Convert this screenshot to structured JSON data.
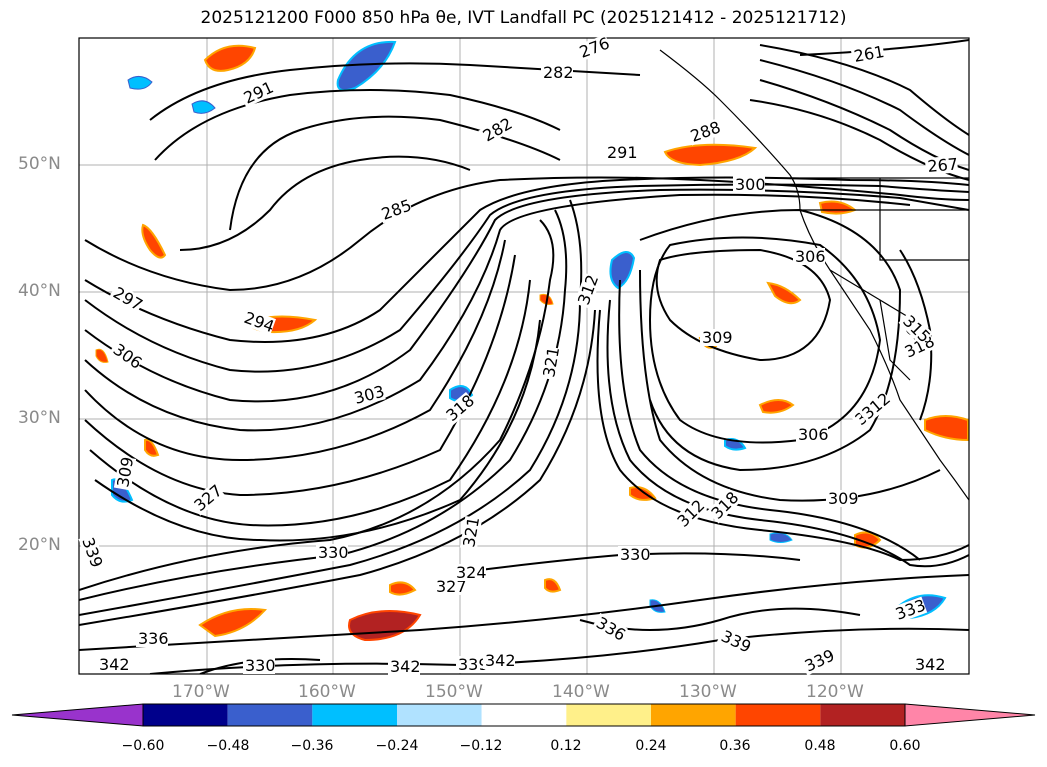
{
  "title": "2025121200 F000 850 hPa θe, IVT Landfall PC (2025121412 - 2025121712)",
  "lat_ticks": [
    "50°N",
    "40°N",
    "30°N",
    "20°N"
  ],
  "lon_ticks": [
    "170°W",
    "160°W",
    "150°W",
    "140°W",
    "130°W",
    "120°W"
  ],
  "colorbar": {
    "ticks": [
      "−0.60",
      "−0.48",
      "−0.36",
      "−0.24",
      "−0.12",
      "0.12",
      "0.24",
      "0.36",
      "0.48",
      "0.60"
    ],
    "under_color": "#9933cc",
    "colors": [
      "#00008b",
      "#3a5fcd",
      "#00bfff",
      "#b0e2ff",
      "#ffffff",
      "#fff08a",
      "#ffa500",
      "#ff4500",
      "#b22222",
      "#ff85a8"
    ],
    "over_color": "#ff85a8"
  },
  "contour_labels": [
    "261",
    "267",
    "276",
    "282",
    "282",
    "288",
    "291",
    "291",
    "285",
    "297",
    "294",
    "306",
    "303",
    "300",
    "306",
    "309",
    "312",
    "315",
    "318",
    "318",
    "321",
    "306",
    "309",
    "312",
    "309",
    "312",
    "318",
    "327",
    "330",
    "336",
    "339",
    "330",
    "339",
    "327",
    "324",
    "321",
    "336",
    "342",
    "342",
    "339",
    "342",
    "330",
    "333",
    "342",
    "339",
    "312",
    "315"
  ]
}
